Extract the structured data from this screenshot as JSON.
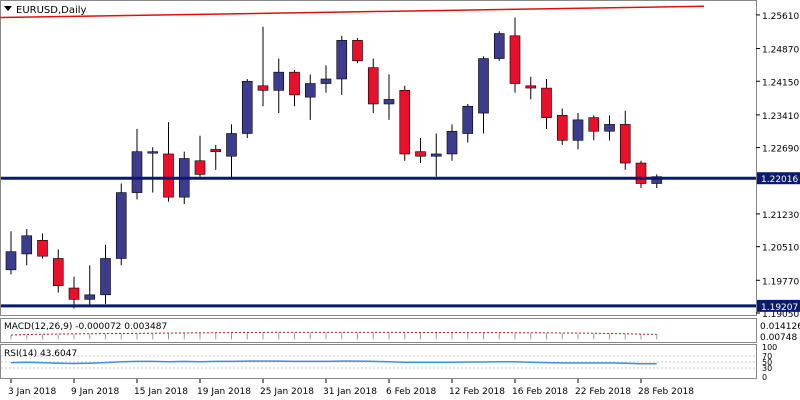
{
  "header": {
    "symbol_label": "EURUSD,Daily"
  },
  "colors": {
    "bull": "#3c3c8e",
    "bear": "#e8102a",
    "resistance": "#e01010",
    "support": "#0a1a6e",
    "macd_signal": "#c01818",
    "rsi_line": "#3f8fdc",
    "grid": "#c8c8c8"
  },
  "chart_data": {
    "type": "candlestick",
    "symbol": "EURUSD",
    "timeframe": "Daily",
    "ylim": [
      1.1905,
      1.2585
    ],
    "price_ticks": [
      "1.25610",
      "1.24870",
      "1.24150",
      "1.23410",
      "1.22690",
      "1.21230",
      "1.20510",
      "1.19770",
      "1.19050"
    ],
    "date_ticks": [
      {
        "label": "3 Jan 2018",
        "index": 0
      },
      {
        "label": "9 Jan 2018",
        "index": 4
      },
      {
        "label": "15 Jan 2018",
        "index": 8
      },
      {
        "label": "19 Jan 2018",
        "index": 12
      },
      {
        "label": "25 Jan 2018",
        "index": 16
      },
      {
        "label": "31 Jan 2018",
        "index": 20
      },
      {
        "label": "6 Feb 2018",
        "index": 24
      },
      {
        "label": "12 Feb 2018",
        "index": 28
      },
      {
        "label": "16 Feb 2018",
        "index": 32
      },
      {
        "label": "22 Feb 2018",
        "index": 36
      },
      {
        "label": "28 Feb 2018",
        "index": 40
      }
    ],
    "candles": [
      {
        "o": 1.2,
        "h": 1.2085,
        "l": 1.199,
        "c": 1.204
      },
      {
        "o": 1.2035,
        "h": 1.209,
        "l": 1.201,
        "c": 1.2075
      },
      {
        "o": 1.2065,
        "h": 1.208,
        "l": 1.2025,
        "c": 1.203
      },
      {
        "o": 1.2025,
        "h": 1.2045,
        "l": 1.195,
        "c": 1.1965
      },
      {
        "o": 1.196,
        "h": 1.1985,
        "l": 1.1915,
        "c": 1.1935
      },
      {
        "o": 1.1935,
        "h": 1.201,
        "l": 1.192,
        "c": 1.1945
      },
      {
        "o": 1.1945,
        "h": 1.2055,
        "l": 1.1925,
        "c": 1.2025
      },
      {
        "o": 1.2025,
        "h": 1.219,
        "l": 1.201,
        "c": 1.217
      },
      {
        "o": 1.217,
        "h": 1.231,
        "l": 1.2155,
        "c": 1.226
      },
      {
        "o": 1.226,
        "h": 1.227,
        "l": 1.217,
        "c": 1.226
      },
      {
        "o": 1.2255,
        "h": 1.2325,
        "l": 1.215,
        "c": 1.216
      },
      {
        "o": 1.216,
        "h": 1.226,
        "l": 1.2145,
        "c": 1.2245
      },
      {
        "o": 1.224,
        "h": 1.2295,
        "l": 1.2205,
        "c": 1.221
      },
      {
        "o": 1.2265,
        "h": 1.2275,
        "l": 1.222,
        "c": 1.226
      },
      {
        "o": 1.225,
        "h": 1.232,
        "l": 1.22,
        "c": 1.23
      },
      {
        "o": 1.23,
        "h": 1.242,
        "l": 1.229,
        "c": 1.2415
      },
      {
        "o": 1.2405,
        "h": 1.2535,
        "l": 1.236,
        "c": 1.2395
      },
      {
        "o": 1.2395,
        "h": 1.2465,
        "l": 1.2345,
        "c": 1.2435
      },
      {
        "o": 1.2435,
        "h": 1.244,
        "l": 1.236,
        "c": 1.2385
      },
      {
        "o": 1.238,
        "h": 1.243,
        "l": 1.233,
        "c": 1.241
      },
      {
        "o": 1.241,
        "h": 1.245,
        "l": 1.239,
        "c": 1.242
      },
      {
        "o": 1.242,
        "h": 1.2515,
        "l": 1.2385,
        "c": 1.2505
      },
      {
        "o": 1.2505,
        "h": 1.251,
        "l": 1.2455,
        "c": 1.246
      },
      {
        "o": 1.2445,
        "h": 1.2465,
        "l": 1.2345,
        "c": 1.2365
      },
      {
        "o": 1.2365,
        "h": 1.243,
        "l": 1.233,
        "c": 1.2375
      },
      {
        "o": 1.2395,
        "h": 1.2405,
        "l": 1.224,
        "c": 1.2255
      },
      {
        "o": 1.226,
        "h": 1.229,
        "l": 1.2235,
        "c": 1.225
      },
      {
        "o": 1.225,
        "h": 1.23,
        "l": 1.2205,
        "c": 1.2255
      },
      {
        "o": 1.2255,
        "h": 1.232,
        "l": 1.224,
        "c": 1.2305
      },
      {
        "o": 1.23,
        "h": 1.2365,
        "l": 1.228,
        "c": 1.236
      },
      {
        "o": 1.2345,
        "h": 1.247,
        "l": 1.23,
        "c": 1.2465
      },
      {
        "o": 1.2465,
        "h": 1.2525,
        "l": 1.246,
        "c": 1.252
      },
      {
        "o": 1.2515,
        "h": 1.2555,
        "l": 1.239,
        "c": 1.241
      },
      {
        "o": 1.2405,
        "h": 1.2425,
        "l": 1.2375,
        "c": 1.24
      },
      {
        "o": 1.24,
        "h": 1.242,
        "l": 1.231,
        "c": 1.2335
      },
      {
        "o": 1.234,
        "h": 1.2355,
        "l": 1.2275,
        "c": 1.2285
      },
      {
        "o": 1.2285,
        "h": 1.2345,
        "l": 1.2265,
        "c": 1.233
      },
      {
        "o": 1.2335,
        "h": 1.234,
        "l": 1.2285,
        "c": 1.2305
      },
      {
        "o": 1.2305,
        "h": 1.234,
        "l": 1.2285,
        "c": 1.232
      },
      {
        "o": 1.232,
        "h": 1.235,
        "l": 1.222,
        "c": 1.2235
      },
      {
        "o": 1.2235,
        "h": 1.224,
        "l": 1.218,
        "c": 1.219
      },
      {
        "o": 1.219,
        "h": 1.221,
        "l": 1.218,
        "c": 1.2205
      }
    ],
    "levels": [
      {
        "name": "support-top",
        "value": 1.22016,
        "label": "1.22016"
      },
      {
        "name": "support-bottom",
        "value": 1.19207,
        "label": "1.19207"
      }
    ],
    "resistance_line": [
      {
        "index": -1,
        "price": 1.2555
      },
      {
        "index": 44,
        "price": 1.258
      }
    ],
    "macd": {
      "label": "MACD(12,26,9) -0.000072 0.003487",
      "scale_ticks": [
        "0.014126",
        "0.00748"
      ],
      "histogram": [
        0.003,
        0.0034,
        0.0036,
        0.0038,
        0.0039,
        0.004,
        0.0041,
        0.0042,
        0.0043,
        0.0044,
        0.0045,
        0.0046,
        0.0047,
        0.0048,
        0.0049,
        0.005,
        0.005,
        0.0051,
        0.0051,
        0.0051,
        0.0051,
        0.0051,
        0.0051,
        0.0051,
        0.0051,
        0.005,
        0.005,
        0.005,
        0.005,
        0.0049,
        0.0049,
        0.0049,
        0.0048,
        0.0048,
        0.0047,
        0.0046,
        0.0045,
        0.0044,
        0.0042,
        0.004,
        0.0037,
        0.0035
      ],
      "ylim": [
        -0.0005,
        0.0141
      ]
    },
    "rsi": {
      "label": "RSI(14) 43.6047",
      "levels": [
        "100",
        "70",
        "50",
        "30",
        "0"
      ],
      "values": [
        48,
        49,
        48,
        46,
        45,
        46,
        48,
        51,
        52,
        52,
        51,
        52,
        51,
        52,
        52,
        53,
        53,
        53,
        52,
        52,
        52,
        53,
        53,
        52,
        51,
        49,
        49,
        49,
        49,
        50,
        50,
        51,
        51,
        49,
        48,
        47,
        47,
        47,
        47,
        46,
        44,
        44
      ],
      "ylim": [
        0,
        100
      ]
    }
  }
}
